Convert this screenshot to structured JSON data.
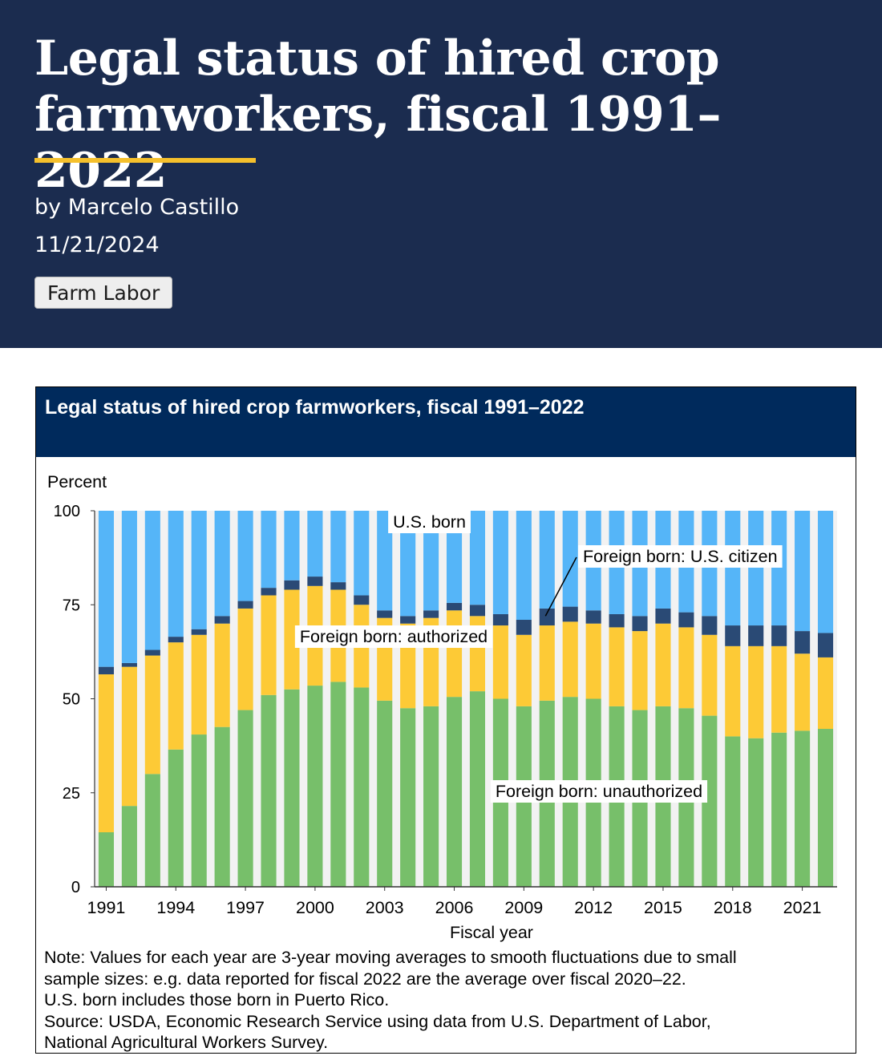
{
  "page": {
    "title": "Legal status of hired crop farmworkers, fiscal 1991–2022",
    "author": "by Marcelo Castillo",
    "date": "11/21/2024",
    "topic_tag": "Farm Labor"
  },
  "figure": {
    "title": "Legal status of hired crop farmworkers, fiscal 1991–2022",
    "notes": [
      "Note: Values for each year are 3-year moving averages to smooth fluctuations due to small",
      "sample sizes: e.g. data reported for fiscal 2022 are the average over fiscal 2020–22.",
      "U.S. born includes those born in Puerto Rico.",
      "Source: USDA, Economic Research Service using data from U.S. Department of Labor,",
      "National Agricultural Workers Survey."
    ]
  },
  "chart_data": {
    "type": "bar",
    "stacked": true,
    "title": "Legal status of hired crop farmworkers, fiscal 1991–2022",
    "ylabel": "Percent",
    "xlabel": "Fiscal year",
    "ylim": [
      0,
      100
    ],
    "yticks": [
      0,
      25,
      50,
      75,
      100
    ],
    "xtick_labels": [
      "1991",
      "1994",
      "1997",
      "2000",
      "2003",
      "2006",
      "2009",
      "2012",
      "2015",
      "2018",
      "2021"
    ],
    "categories": [
      1991,
      1992,
      1993,
      1994,
      1995,
      1996,
      1997,
      1998,
      1999,
      2000,
      2001,
      2002,
      2003,
      2004,
      2005,
      2006,
      2007,
      2008,
      2009,
      2010,
      2011,
      2012,
      2013,
      2014,
      2015,
      2016,
      2017,
      2018,
      2019,
      2020,
      2021,
      2022
    ],
    "grid": false,
    "legend": "inline labels",
    "series": [
      {
        "name": "Foreign born: unauthorized",
        "color": "#77bf6a",
        "values": [
          14.5,
          21.5,
          30,
          36.5,
          40.5,
          42.5,
          47,
          51,
          52.5,
          53.5,
          54.5,
          53,
          49.5,
          47.5,
          48,
          50.5,
          52,
          50,
          48,
          49.5,
          50.5,
          50,
          48,
          47,
          48,
          47.5,
          45.5,
          40,
          39.5,
          41,
          41.5,
          42
        ]
      },
      {
        "name": "Foreign born: authorized",
        "color": "#fdca36",
        "values": [
          42,
          37,
          31.5,
          28.5,
          26.5,
          27.5,
          27,
          26.5,
          26.5,
          26.5,
          24.5,
          22,
          22,
          22.5,
          23.5,
          23,
          20,
          19.5,
          19,
          20,
          20,
          20,
          21,
          21,
          22,
          21.5,
          21.5,
          24,
          24.5,
          23,
          20.5,
          19
        ]
      },
      {
        "name": "Foreign born: U.S. citizen",
        "color": "#2a4a75",
        "values": [
          2,
          1,
          1.5,
          1.5,
          1.5,
          2,
          2,
          2,
          2.5,
          2.5,
          2,
          2.5,
          2,
          2,
          2,
          2,
          3,
          3,
          4,
          4.5,
          4,
          3.5,
          3.5,
          4,
          4,
          4,
          5,
          5.5,
          5.5,
          5.5,
          6,
          6.5
        ]
      },
      {
        "name": "U.S. born",
        "color": "#55b5f8",
        "values": [
          41.5,
          40.5,
          37,
          33.5,
          31.5,
          28,
          24,
          20.5,
          18.5,
          17.5,
          19,
          22.5,
          26.5,
          28,
          26.5,
          24.5,
          25,
          27.5,
          29,
          26,
          25.5,
          26.5,
          27.5,
          28,
          26,
          27,
          28,
          30.5,
          30.5,
          30.5,
          32,
          32.5
        ]
      }
    ],
    "annotations": [
      {
        "text": "U.S. born",
        "series": "U.S. born"
      },
      {
        "text": "Foreign born: U.S. citizen",
        "series": "Foreign born: U.S. citizen"
      },
      {
        "text": "Foreign born: authorized",
        "series": "Foreign born: authorized"
      },
      {
        "text": "Foreign born: unauthorized",
        "series": "Foreign born: unauthorized"
      }
    ]
  }
}
